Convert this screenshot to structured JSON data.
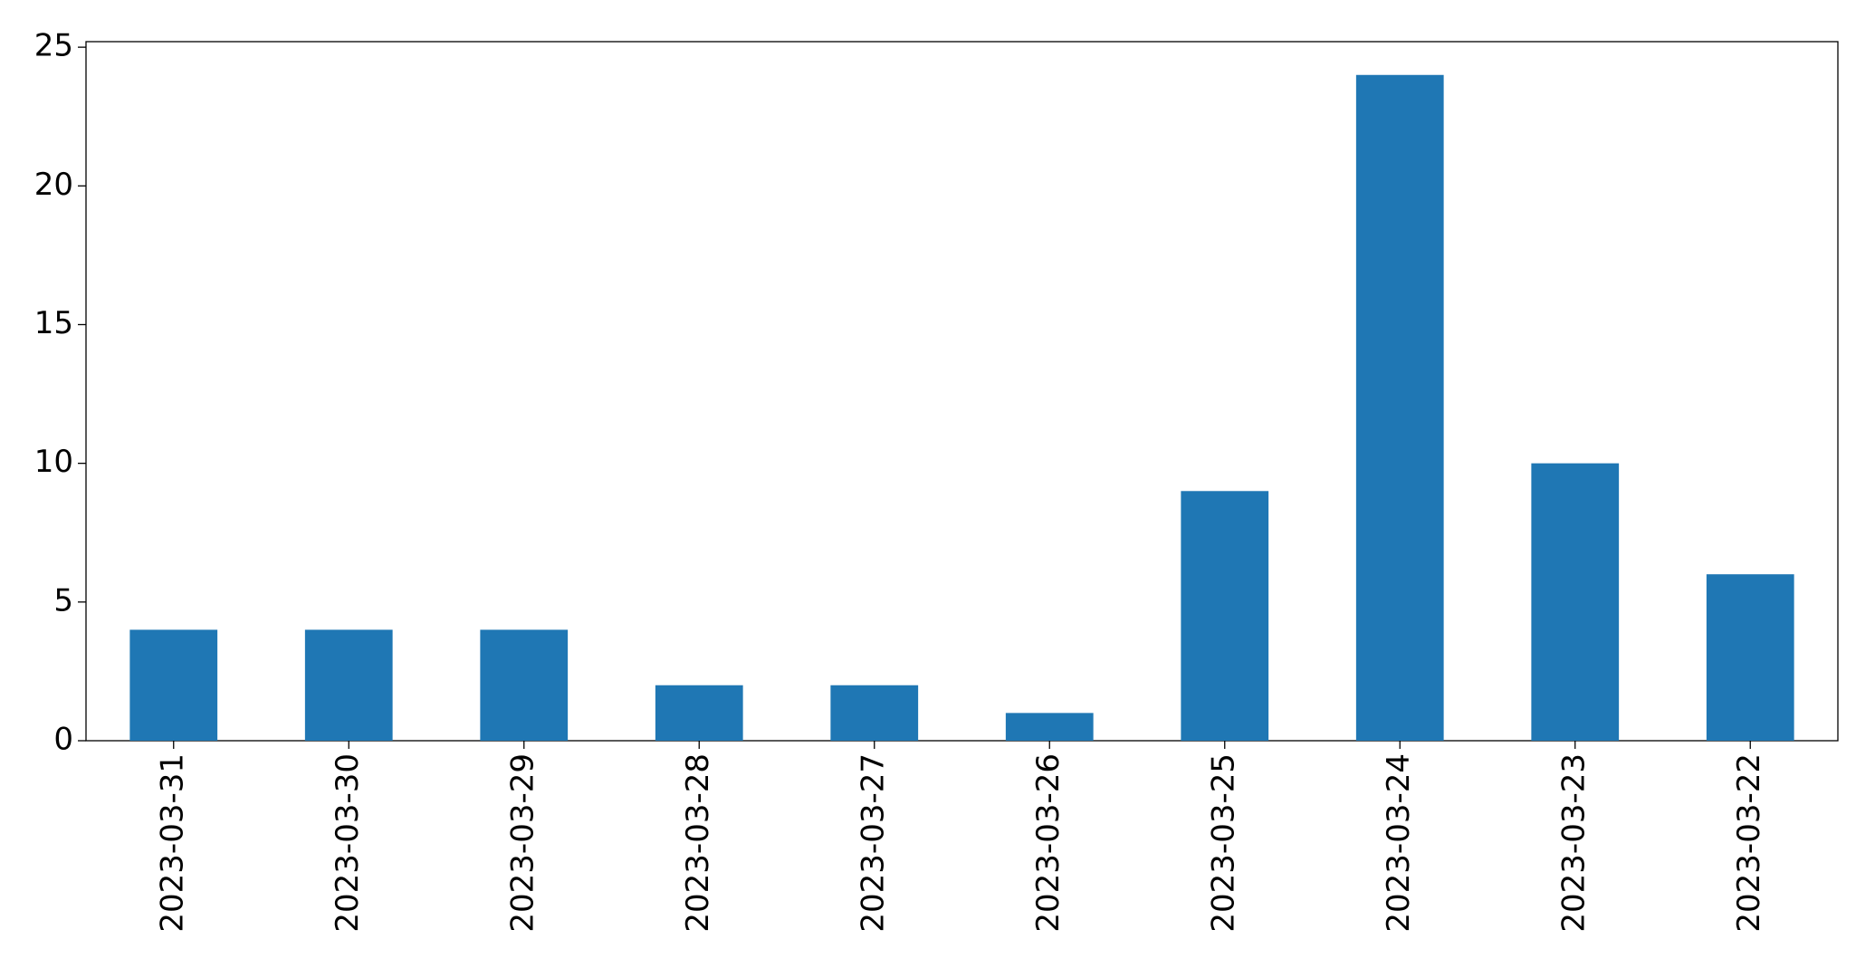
{
  "chart_data": {
    "type": "bar",
    "categories": [
      "2023-03-31",
      "2023-03-30",
      "2023-03-29",
      "2023-03-28",
      "2023-03-27",
      "2023-03-26",
      "2023-03-25",
      "2023-03-24",
      "2023-03-23",
      "2023-03-22"
    ],
    "values": [
      4,
      4,
      4,
      2,
      2,
      1,
      9,
      24,
      10,
      6
    ],
    "color": "#1f77b4",
    "ylim": [
      0,
      25.2
    ],
    "yticks": [
      0,
      5,
      10,
      15,
      20,
      25
    ],
    "grid": false
  }
}
